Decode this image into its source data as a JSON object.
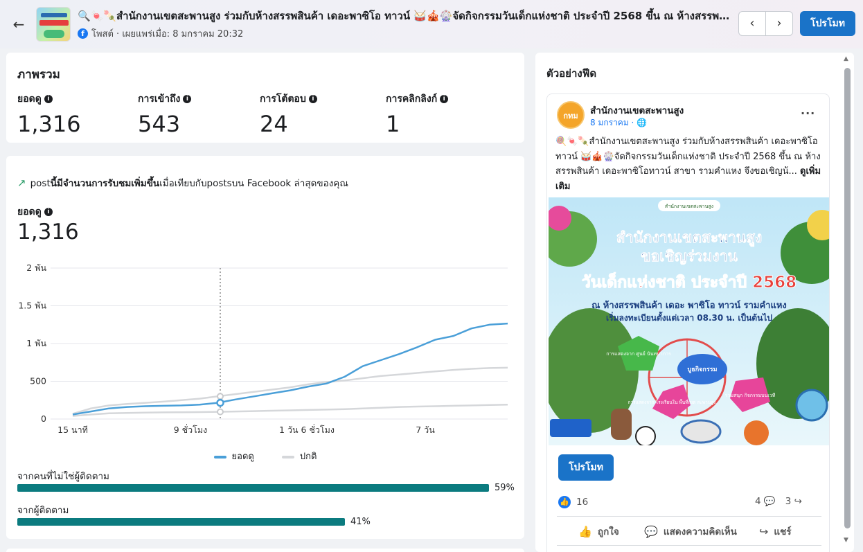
{
  "header": {
    "title": "🔍🍬🍡สำนักงานเขตสะพานสูง ร่วมกับห้างสรรพสินค้า เดอะพาซิโอ ทาวน์ 🥁🎪🎡จัดกิจกรรมวันเด็กแห่งชาติ ประจำปี 2568 ขึ้น ณ ห้างสรรพสินค้า",
    "subline": "โพสต์ · เผยแพร่เมื่อ: 8 มกราคม 20:32",
    "promote_label": "โปรโมท"
  },
  "overview": {
    "title": "ภาพรวม",
    "metrics": [
      {
        "label": "ยอดดู",
        "value": "1,316"
      },
      {
        "label": "การเข้าถึง",
        "value": "543"
      },
      {
        "label": "การโต้ตอบ",
        "value": "24"
      },
      {
        "label": "การคลิกลิงก์",
        "value": "1"
      }
    ]
  },
  "performance": {
    "trend_pre": "post",
    "trend_bold": "นี้มีจำนวนการรับชมเพิ่มขึ้น",
    "trend_post": "เมื่อเทียบกับpostsบน Facebook ล่าสุดของคุณ",
    "views_label": "ยอดดู",
    "views_value": "1,316",
    "non_followers_label": "จากคนที่ไม่ใช่ผู้ติดตาม",
    "non_followers_pct": "59%",
    "followers_label": "จากผู้ติดตาม",
    "followers_pct": "41%"
  },
  "chart_data": {
    "type": "line",
    "y_ticks": [
      "2 พัน",
      "1.5 พัน",
      "1 พัน",
      "500",
      "0"
    ],
    "y_tick_values": [
      2000,
      1500,
      1000,
      500,
      0
    ],
    "x_ticks": [
      "15 นาที",
      "9 ชั่วโมง",
      "1 วัน 6 ชั่วโมง",
      "7 วัน"
    ],
    "ylim": [
      0,
      2000
    ],
    "series": [
      {
        "name": "ยอดดู",
        "color": "#4a9fd8",
        "values": [
          60,
          100,
          140,
          160,
          170,
          175,
          180,
          190,
          215,
          260,
          300,
          340,
          380,
          430,
          470,
          560,
          700,
          780,
          860,
          950,
          1050,
          1100,
          1200,
          1250,
          1265
        ]
      },
      {
        "name": "ปกติ",
        "color": "#d5d7da",
        "values": [
          70,
          140,
          180,
          200,
          215,
          230,
          250,
          270,
          300,
          330,
          360,
          390,
          420,
          460,
          490,
          510,
          540,
          570,
          590,
          610,
          630,
          650,
          665,
          675,
          680
        ]
      },
      {
        "name": "",
        "color": "#d5d7da",
        "values": [
          40,
          60,
          75,
          80,
          85,
          88,
          90,
          92,
          95,
          100,
          105,
          110,
          115,
          120,
          125,
          130,
          140,
          150,
          160,
          165,
          170,
          175,
          180,
          185,
          190
        ]
      }
    ],
    "legend": [
      "ยอดดู",
      "ปกติ"
    ],
    "split_ratio": {
      "non_followers": 0.59,
      "followers": 0.41
    }
  },
  "feed": {
    "title": "ตัวอย่างฟีด",
    "page_name": "สำนักงานเขตสะพานสูง",
    "date": "8 มกราคม ·",
    "avatar_text": "กทม",
    "text": "🍭🍬🍡สำนักงานเขตสะพานสูง ร่วมกับห้างสรรพสินค้า เดอะพาซิโอ ทาวน์ 🥁🎪🎡จัดกิจกรรมวันเด็กแห่งชาติ ประจำปี 2568 ขึ้น ณ ห้างสรรพสินค้า เดอะพาซิโอทาวน์ สาขา รามคำแหง จึงขอเชิญน้... ",
    "see_more": "ดูเพิ่มเติม",
    "poster": {
      "header": "สำนักงานเขตสะพานสูง",
      "line1": "สำนักงานเขตสะพานสูง",
      "line2": "ขอเชิญร่วมงาน",
      "line3": "วันเด็กแห่งชาติ ประจำปี 2568",
      "line4": "ณ ห้างสรรพสินค้า เดอะ พาซิโอ ทาวน์ รามคำแหง",
      "line5": "เริ่มลงทะเบียนตั้งแต่เวลา 08.30 น. เป็นต้นไป",
      "badge1": "การแสดงจาก ศูนย์ นันทนาการ",
      "badge2": "บูธกิจกรรม",
      "badge3": "การแสดงจาก โรงเรียนใน พื้นที่เขต สะพานสูง",
      "badge4": "ร่วมสนุก กิจกรรมบนเวที"
    },
    "promote_label": "โปรโมท",
    "likes": "16",
    "comments": "4",
    "shares": "3",
    "action_like": "ถูกใจ",
    "action_comment": "แสดงความคิดเห็น",
    "action_share": "แชร์"
  }
}
